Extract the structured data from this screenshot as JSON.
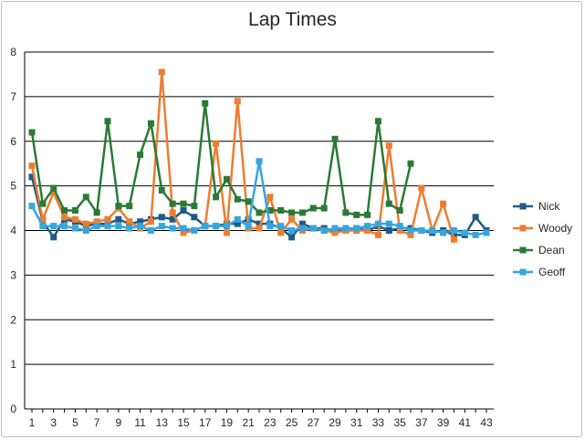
{
  "chart_data": {
    "type": "line",
    "title": "Lap Times",
    "xlabel": "",
    "ylabel": "",
    "ylim": [
      0,
      8
    ],
    "yticks": [
      0,
      1,
      2,
      3,
      4,
      5,
      6,
      7,
      8
    ],
    "x": [
      1,
      2,
      3,
      4,
      5,
      6,
      7,
      8,
      9,
      10,
      11,
      12,
      13,
      14,
      15,
      16,
      17,
      18,
      19,
      20,
      21,
      22,
      23,
      24,
      25,
      26,
      27,
      28,
      29,
      30,
      31,
      32,
      33,
      34,
      35,
      36,
      37,
      38,
      39,
      40,
      41,
      42,
      43
    ],
    "xtick_labels": [
      "1",
      "3",
      "5",
      "7",
      "9",
      "11",
      "13",
      "15",
      "17",
      "19",
      "21",
      "23",
      "25",
      "27",
      "29",
      "31",
      "33",
      "35",
      "37",
      "39",
      "41",
      "43"
    ],
    "grid": true,
    "legend_position": "right",
    "series": [
      {
        "name": "Nick",
        "color": "#1f5b85",
        "values": [
          5.2,
          4.2,
          3.85,
          4.25,
          4.2,
          4.1,
          4.15,
          4.15,
          4.25,
          4.15,
          4.2,
          4.25,
          4.3,
          4.25,
          4.45,
          4.3,
          4.1,
          4.1,
          4.15,
          4.15,
          4.25,
          4.15,
          4.15,
          4.05,
          3.85,
          4.15,
          4.05,
          4.05,
          4.0,
          4.0,
          4.05,
          4.0,
          4.1,
          4.0,
          4.05,
          4.05,
          4.0,
          3.95,
          4.0,
          3.9,
          3.9,
          4.3,
          4.0
        ]
      },
      {
        "name": "Woody",
        "color": "#ed7d31",
        "values": [
          5.45,
          4.25,
          4.85,
          4.3,
          4.25,
          4.15,
          4.2,
          4.25,
          4.5,
          4.2,
          4.05,
          4.2,
          7.55,
          4.4,
          3.95,
          4.0,
          4.1,
          5.95,
          3.95,
          6.9,
          4.05,
          4.05,
          4.75,
          3.95,
          4.25,
          4.0,
          4.05,
          4.0,
          3.95,
          4.0,
          4.0,
          4.0,
          3.9,
          5.9,
          4.0,
          3.9,
          4.95,
          4.0,
          4.6,
          3.8,
          null,
          null,
          null
        ]
      },
      {
        "name": "Dean",
        "color": "#2a7a35",
        "values": [
          6.2,
          4.6,
          4.95,
          4.45,
          4.45,
          4.75,
          4.4,
          6.45,
          4.55,
          4.55,
          5.7,
          6.4,
          4.9,
          4.6,
          4.6,
          4.55,
          6.85,
          4.75,
          5.15,
          4.7,
          4.65,
          4.4,
          4.45,
          4.45,
          4.4,
          4.4,
          4.5,
          4.5,
          6.05,
          4.4,
          4.35,
          4.35,
          6.45,
          4.6,
          4.45,
          5.5,
          null,
          null,
          null,
          null,
          null,
          null,
          null
        ]
      },
      {
        "name": "Geoff",
        "color": "#35a6e0",
        "values": [
          4.55,
          4.1,
          4.1,
          4.1,
          4.05,
          4.0,
          4.1,
          4.1,
          4.1,
          4.05,
          4.1,
          4.0,
          4.1,
          4.05,
          4.05,
          4.0,
          4.1,
          4.1,
          4.1,
          4.25,
          4.1,
          5.55,
          4.1,
          4.1,
          4.0,
          4.05,
          4.05,
          4.0,
          4.05,
          4.05,
          4.05,
          4.1,
          4.15,
          4.15,
          4.1,
          4.0,
          4.0,
          4.0,
          3.95,
          4.0,
          3.95,
          3.9,
          3.95
        ]
      }
    ]
  }
}
